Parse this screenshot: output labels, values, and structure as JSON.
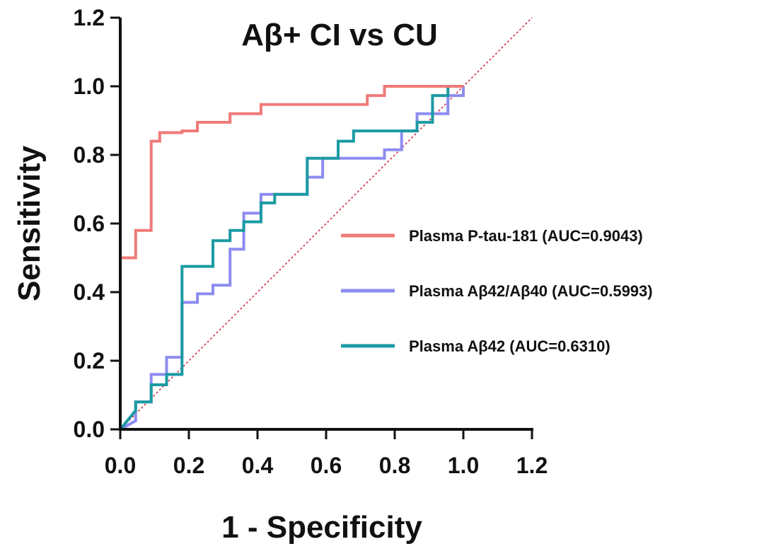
{
  "chart_data": {
    "type": "line",
    "title": "Aβ+ CI  vs  CU",
    "xlabel": "1 - Specificity",
    "ylabel": "Sensitivity",
    "xlim": [
      0,
      1.2
    ],
    "ylim": [
      0,
      1.2
    ],
    "x_ticks": [
      "0.0",
      "0.2",
      "0.4",
      "0.6",
      "0.8",
      "1.0",
      "1.2"
    ],
    "y_ticks": [
      "0.0",
      "0.2",
      "0.4",
      "0.6",
      "0.8",
      "1.0",
      "1.2"
    ],
    "grid": false,
    "legend_position": "center-right",
    "reference_line": {
      "style": "dotted",
      "color": "#d0304a",
      "x": [
        0,
        1.2
      ],
      "y": [
        0,
        1.2
      ]
    },
    "series": [
      {
        "name": "Plasma P-tau-181 (AUC=0.9043)",
        "color": "#f07a7a",
        "x": [
          0,
          0,
          0.045,
          0.045,
          0.09,
          0.09,
          0.115,
          0.115,
          0.18,
          0.18,
          0.225,
          0.225,
          0.32,
          0.32,
          0.41,
          0.41,
          0.72,
          0.72,
          0.77,
          0.77,
          1.0
        ],
        "y": [
          0,
          0.5,
          0.5,
          0.58,
          0.58,
          0.84,
          0.84,
          0.865,
          0.865,
          0.87,
          0.87,
          0.895,
          0.895,
          0.92,
          0.92,
          0.947,
          0.947,
          0.973,
          0.973,
          1.0,
          1.0
        ]
      },
      {
        "name": "Plasma Aβ42/Aβ40 (AUC=0.5993)",
        "color": "#8c8cf0",
        "x": [
          0,
          0.045,
          0.045,
          0.09,
          0.09,
          0.135,
          0.135,
          0.18,
          0.18,
          0.225,
          0.225,
          0.27,
          0.27,
          0.32,
          0.32,
          0.36,
          0.36,
          0.41,
          0.41,
          0.545,
          0.545,
          0.59,
          0.59,
          0.635,
          0.635,
          0.77,
          0.77,
          0.82,
          0.82,
          0.865,
          0.865,
          0.955,
          0.955,
          1.0,
          1.0
        ],
        "y": [
          0,
          0.025,
          0.08,
          0.08,
          0.16,
          0.16,
          0.21,
          0.21,
          0.37,
          0.37,
          0.395,
          0.395,
          0.42,
          0.42,
          0.525,
          0.525,
          0.63,
          0.63,
          0.685,
          0.685,
          0.735,
          0.735,
          0.79,
          0.79,
          0.79,
          0.79,
          0.815,
          0.815,
          0.87,
          0.87,
          0.92,
          0.92,
          0.973,
          0.973,
          1.0
        ]
      },
      {
        "name": "Plasma Aβ42 (AUC=0.6310)",
        "color": "#1a9aa2",
        "x": [
          0,
          0.045,
          0.045,
          0.09,
          0.09,
          0.135,
          0.135,
          0.18,
          0.18,
          0.27,
          0.27,
          0.32,
          0.32,
          0.36,
          0.36,
          0.41,
          0.41,
          0.45,
          0.45,
          0.545,
          0.545,
          0.635,
          0.635,
          0.68,
          0.68,
          0.82,
          0.82,
          0.865,
          0.865,
          0.91,
          0.91,
          0.955,
          0.955,
          1.0
        ],
        "y": [
          0,
          0.055,
          0.08,
          0.08,
          0.13,
          0.13,
          0.16,
          0.16,
          0.475,
          0.475,
          0.55,
          0.55,
          0.58,
          0.58,
          0.605,
          0.605,
          0.66,
          0.66,
          0.685,
          0.685,
          0.79,
          0.79,
          0.84,
          0.84,
          0.87,
          0.87,
          0.87,
          0.87,
          0.895,
          0.895,
          0.973,
          0.973,
          1.0,
          1.0
        ]
      }
    ]
  }
}
